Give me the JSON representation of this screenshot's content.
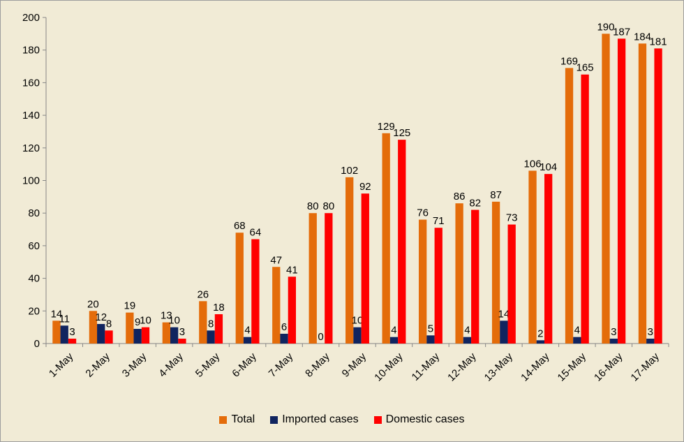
{
  "chart_data": {
    "type": "bar",
    "title": "",
    "xlabel": "",
    "ylabel": "",
    "ylim": [
      0,
      200
    ],
    "yticks": [
      0,
      20,
      40,
      60,
      80,
      100,
      120,
      140,
      160,
      180,
      200
    ],
    "grid": false,
    "legend_position": "bottom",
    "categories": [
      "1-May",
      "2-May",
      "3-May",
      "4-May",
      "5-May",
      "6-May",
      "7-May",
      "8-May",
      "9-May",
      "10-May",
      "11-May",
      "12-May",
      "13-May",
      "14-May",
      "15-May",
      "16-May",
      "17-May"
    ],
    "series": [
      {
        "name": "Total",
        "color": "#e46c0a",
        "values": [
          14,
          20,
          19,
          13,
          26,
          68,
          47,
          80,
          102,
          129,
          76,
          86,
          87,
          106,
          169,
          190,
          184
        ]
      },
      {
        "name": "Imported cases",
        "color": "#10245f",
        "values": [
          11,
          12,
          9,
          10,
          8,
          4,
          6,
          0,
          10,
          4,
          5,
          4,
          14,
          2,
          4,
          3,
          3
        ]
      },
      {
        "name": "Domestic cases",
        "color": "#ff0000",
        "values": [
          3,
          8,
          10,
          3,
          18,
          64,
          41,
          80,
          92,
          125,
          71,
          82,
          73,
          104,
          165,
          187,
          181
        ]
      }
    ]
  }
}
